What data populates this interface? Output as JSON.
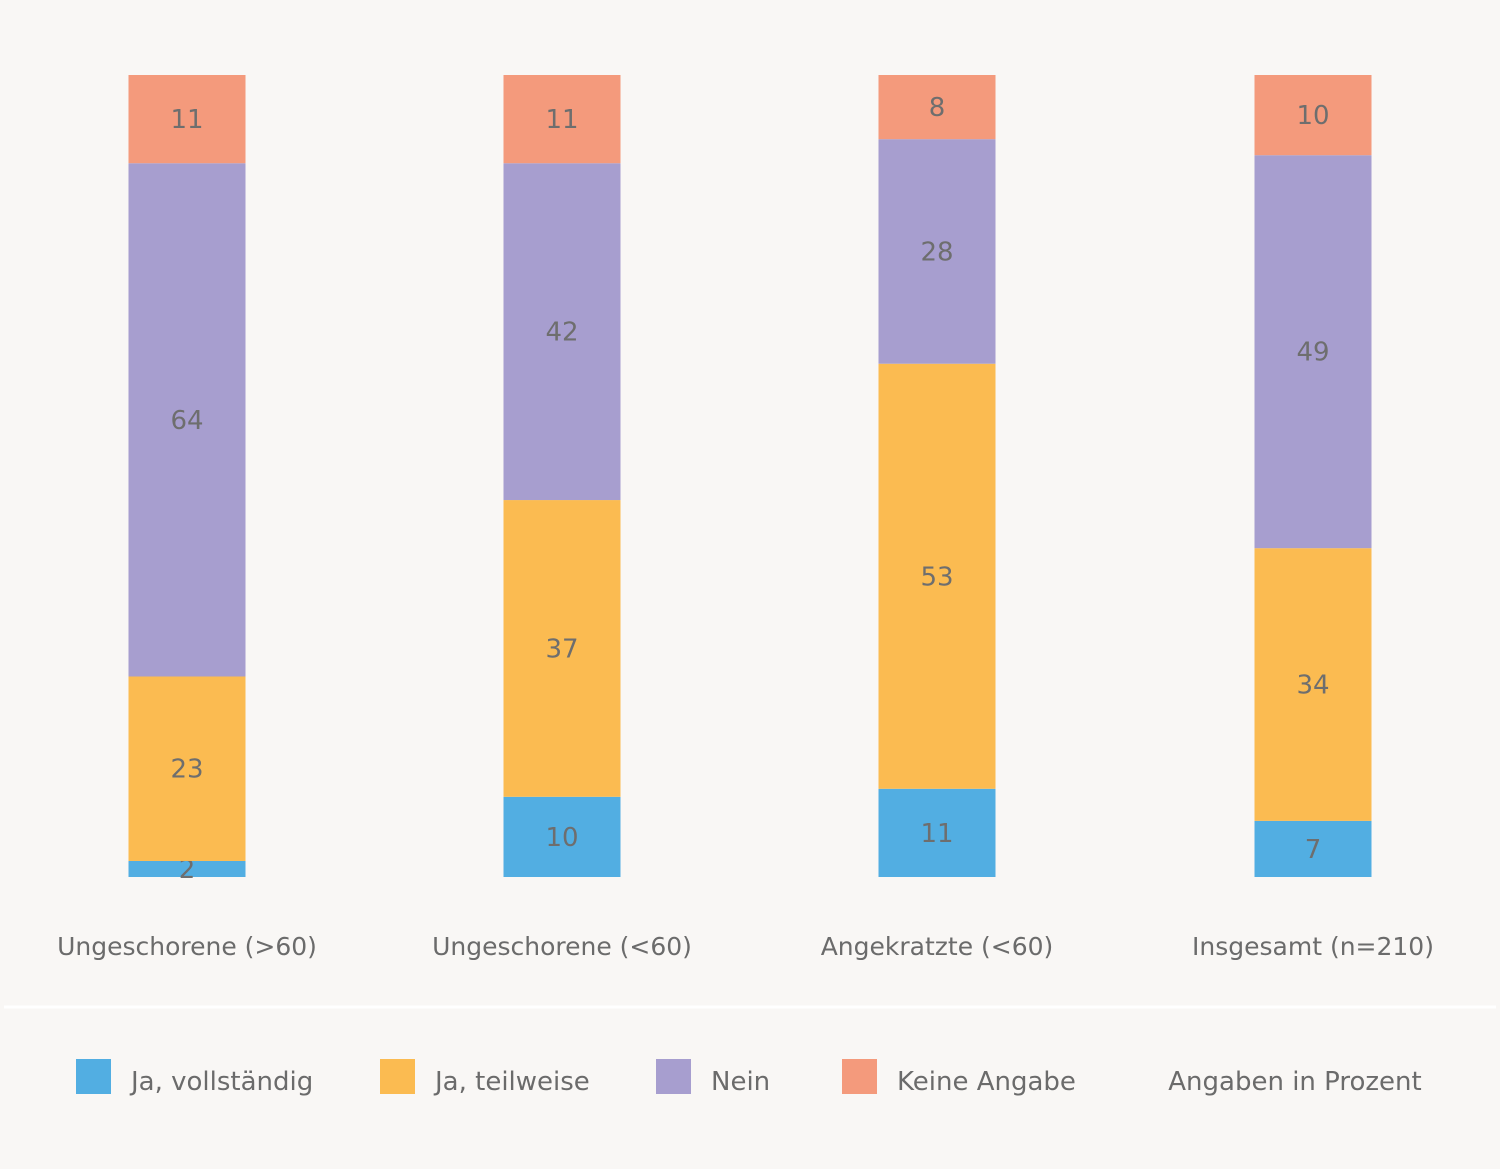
{
  "chart_data": {
    "type": "bar",
    "stacked": true,
    "orientation": "vertical",
    "categories": [
      "Ungeschorene (>60)",
      "Ungeschorene (<60)",
      "Angekratzte (<60)",
      "Insgesamt (n=210)"
    ],
    "series": [
      {
        "name": "Ja, vollständig",
        "color": "#52aee2",
        "values": [
          2,
          10,
          11,
          7
        ]
      },
      {
        "name": "Ja, teilweise",
        "color": "#fbbb51",
        "values": [
          23,
          37,
          53,
          34
        ]
      },
      {
        "name": "Nein",
        "color": "#a79ecf",
        "values": [
          64,
          42,
          28,
          49
        ]
      },
      {
        "name": "Keine Angabe",
        "color": "#f49a7c",
        "values": [
          11,
          11,
          8,
          10
        ]
      }
    ],
    "note": "Angaben in Prozent",
    "legend": "bottom",
    "grid": false
  }
}
